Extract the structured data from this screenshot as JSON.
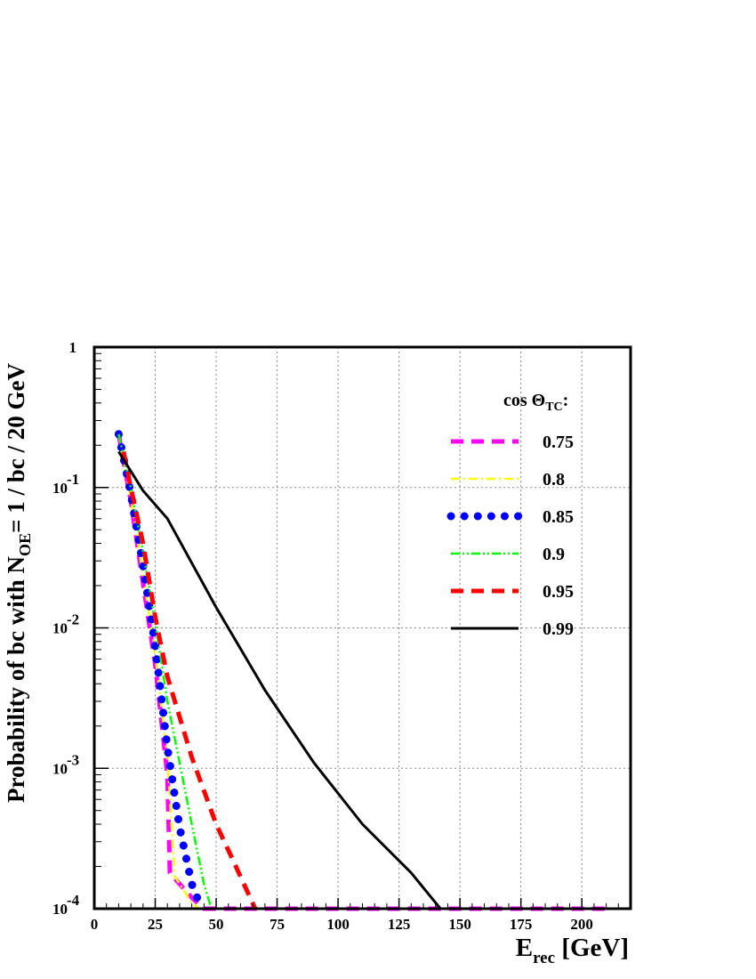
{
  "chart_data": {
    "type": "line",
    "x_scale": "linear",
    "y_scale": "log",
    "xlim": [
      0,
      220
    ],
    "ylim": [
      0.0001,
      1
    ],
    "x_ticks": [
      0,
      25,
      50,
      75,
      100,
      125,
      150,
      175,
      200
    ],
    "x_tick_labels": [
      "0",
      "25",
      "50",
      "75",
      "100",
      "125",
      "150",
      "175",
      "200"
    ],
    "y_ticks": [
      1,
      0.1,
      0.01,
      0.001,
      0.0001
    ],
    "y_tick_labels": [
      {
        "base": "1",
        "exp": ""
      },
      {
        "base": "10",
        "exp": "-1"
      },
      {
        "base": "10",
        "exp": "-2"
      },
      {
        "base": "10",
        "exp": "-3"
      },
      {
        "base": "10",
        "exp": "-4"
      }
    ],
    "xlabel": {
      "main": "E",
      "sub": "rec",
      "rest": " [GeV]"
    },
    "ylabel": {
      "pre": "Probability of bc with N",
      "sub": "OE",
      "post": "= 1 / bc / 20 GeV"
    },
    "grid": true,
    "legend_title": {
      "pre": "cos Θ",
      "sub": "TC",
      "post": ":"
    },
    "legend_position": "top-right",
    "series": [
      {
        "name": "0.75",
        "color": "#ff00ff",
        "style": "dashed",
        "points": [
          [
            10,
            0.24
          ],
          [
            15,
            0.08
          ],
          [
            20,
            0.021
          ],
          [
            25,
            0.0055
          ],
          [
            30,
            0.0009
          ],
          [
            31,
            0.00018
          ],
          [
            35,
            0.00015
          ],
          [
            40,
            0.00012
          ],
          [
            45,
            0.0001
          ],
          [
            210,
            0.0001
          ]
        ]
      },
      {
        "name": "0.8",
        "color": "#ffff00",
        "style": "dashdot",
        "points": [
          [
            10,
            0.24
          ],
          [
            15,
            0.085
          ],
          [
            20,
            0.024
          ],
          [
            25,
            0.0065
          ],
          [
            30,
            0.0012
          ],
          [
            33,
            0.00017
          ],
          [
            40,
            0.00011
          ],
          [
            43,
            0.0001
          ]
        ]
      },
      {
        "name": "0.85",
        "color": "#0000ff",
        "style": "dotted",
        "points": [
          [
            10,
            0.24
          ],
          [
            15,
            0.09
          ],
          [
            20,
            0.028
          ],
          [
            25,
            0.0075
          ],
          [
            30,
            0.0014
          ],
          [
            35,
            0.00038
          ],
          [
            40,
            0.00015
          ],
          [
            44,
            0.0001
          ]
        ]
      },
      {
        "name": "0.9",
        "color": "#00ff00",
        "style": "dashdotdot",
        "points": [
          [
            10,
            0.24
          ],
          [
            15,
            0.1
          ],
          [
            20,
            0.035
          ],
          [
            25,
            0.011
          ],
          [
            30,
            0.003
          ],
          [
            35,
            0.0011
          ],
          [
            40,
            0.0004
          ],
          [
            45,
            0.00015
          ],
          [
            48,
            0.0001
          ]
        ]
      },
      {
        "name": "0.95",
        "color": "#ff0000",
        "style": "dashed",
        "points": [
          [
            12,
            0.18
          ],
          [
            15,
            0.1
          ],
          [
            20,
            0.04
          ],
          [
            25,
            0.012
          ],
          [
            30,
            0.0045
          ],
          [
            40,
            0.0012
          ],
          [
            50,
            0.0004
          ],
          [
            57,
            0.00022
          ],
          [
            66,
            0.0001
          ]
        ]
      },
      {
        "name": "0.99",
        "color": "#000000",
        "style": "solid",
        "points": [
          [
            10,
            0.18
          ],
          [
            20,
            0.095
          ],
          [
            30,
            0.06
          ],
          [
            50,
            0.014
          ],
          [
            70,
            0.0036
          ],
          [
            90,
            0.0011
          ],
          [
            110,
            0.0004
          ],
          [
            130,
            0.00018
          ],
          [
            142,
            0.0001
          ]
        ]
      }
    ]
  }
}
